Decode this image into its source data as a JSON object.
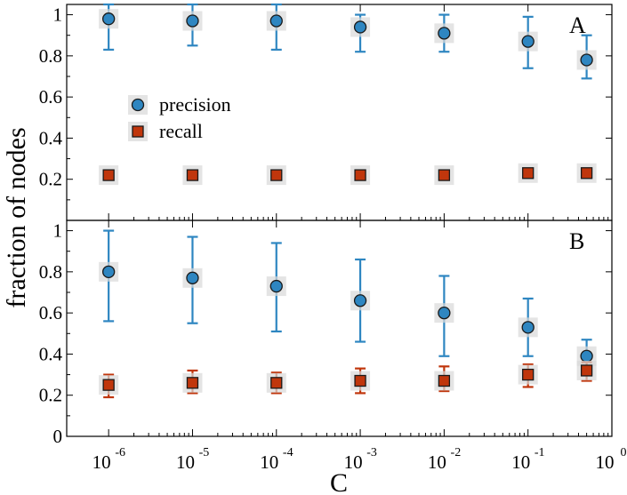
{
  "chart_data": {
    "type": "scatter",
    "ylabel": "fraction of nodes",
    "xlabel": "C",
    "x_scale": "log",
    "x_tick_labels": [
      {
        "base": "10",
        "exp": "-6",
        "x": 1e-06
      },
      {
        "base": "10",
        "exp": "-5",
        "x": 1e-05
      },
      {
        "base": "10",
        "exp": "-4",
        "x": 0.0001
      },
      {
        "base": "10",
        "exp": "-3",
        "x": 0.001
      },
      {
        "base": "10",
        "exp": "-2",
        "x": 0.01
      },
      {
        "base": "10",
        "exp": "-1",
        "x": 0.1
      },
      {
        "base": "10",
        "exp": "0",
        "x": 1
      }
    ],
    "x": [
      1e-06,
      1e-05,
      0.0001,
      0.001,
      0.01,
      0.1,
      0.5
    ],
    "legend": {
      "placement": "upper-left of panel A",
      "entries": [
        {
          "label": "precision",
          "color": "#2e86c1",
          "marker": "circle"
        },
        {
          "label": "recall",
          "color": "#c0360c",
          "marker": "square"
        }
      ]
    },
    "panels": [
      {
        "label": "A",
        "ylim": [
          0,
          1.05
        ],
        "y_ticks": [
          "0.2",
          "0.4",
          "0.6",
          "0.8",
          "1"
        ],
        "y_tick_values": [
          0.2,
          0.4,
          0.6,
          0.8,
          1.0
        ],
        "series": [
          {
            "name": "precision",
            "values": [
              0.98,
              0.97,
              0.97,
              0.94,
              0.91,
              0.87,
              0.78
            ],
            "err_low": [
              0.83,
              0.85,
              0.83,
              0.82,
              0.82,
              0.74,
              0.69
            ],
            "err_high": [
              1.05,
              1.05,
              1.05,
              1.0,
              1.0,
              0.99,
              0.9
            ]
          },
          {
            "name": "recall",
            "values": [
              0.22,
              0.22,
              0.22,
              0.22,
              0.22,
              0.23,
              0.23
            ],
            "err_low": [
              0.21,
              0.21,
              0.21,
              0.21,
              0.21,
              0.22,
              0.22
            ],
            "err_high": [
              0.23,
              0.23,
              0.23,
              0.23,
              0.23,
              0.24,
              0.24
            ]
          }
        ]
      },
      {
        "label": "B",
        "ylim": [
          0,
          1.05
        ],
        "y_ticks": [
          "0",
          "0.2",
          "0.4",
          "0.6",
          "0.8",
          "1"
        ],
        "y_tick_values": [
          0,
          0.2,
          0.4,
          0.6,
          0.8,
          1.0
        ],
        "series": [
          {
            "name": "precision",
            "values": [
              0.8,
              0.77,
              0.73,
              0.66,
              0.6,
              0.53,
              0.39
            ],
            "err_low": [
              0.56,
              0.55,
              0.51,
              0.46,
              0.39,
              0.39,
              0.31
            ],
            "err_high": [
              1.0,
              0.97,
              0.94,
              0.86,
              0.78,
              0.67,
              0.47
            ]
          },
          {
            "name": "recall",
            "values": [
              0.25,
              0.26,
              0.26,
              0.27,
              0.27,
              0.3,
              0.32
            ],
            "err_low": [
              0.19,
              0.21,
              0.21,
              0.21,
              0.22,
              0.24,
              0.27
            ],
            "err_high": [
              0.3,
              0.32,
              0.31,
              0.33,
              0.34,
              0.35,
              0.36
            ]
          }
        ]
      }
    ]
  }
}
